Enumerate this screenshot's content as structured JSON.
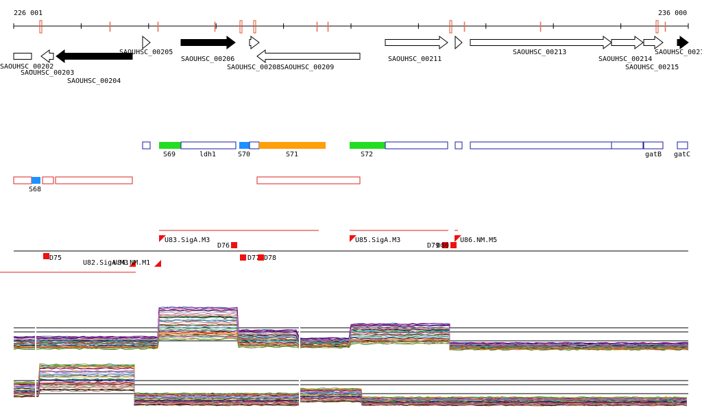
{
  "ruler": {
    "start_label": "226 001",
    "end_label": "236 000"
  },
  "genes": [
    {
      "label": "SAOUHSC_00202",
      "strand": "+",
      "fill": "white"
    },
    {
      "label": "SAOUHSC_00203",
      "strand": "-",
      "fill": "white"
    },
    {
      "label": "SAOUHSC_00204",
      "strand": "-",
      "fill": "black"
    },
    {
      "label": "SAOUHSC_00205",
      "strand": "+",
      "fill": "white"
    },
    {
      "label": "SAOUHSC_00206",
      "strand": "+",
      "fill": "black"
    },
    {
      "label": "SAOUHSC_00208",
      "strand": "+",
      "fill": "white"
    },
    {
      "label": "SAOUHSC_00209",
      "strand": "-",
      "fill": "white"
    },
    {
      "label": "SAOUHSC_00211",
      "strand": "+",
      "fill": "white"
    },
    {
      "label": "",
      "strand": "+",
      "fill": "white"
    },
    {
      "label": "SAOUHSC_00213",
      "strand": "+",
      "fill": "white"
    },
    {
      "label": "SAOUHSC_00214",
      "strand": "+",
      "fill": "white"
    },
    {
      "label": "SAOUHSC_00215",
      "strand": "+",
      "fill": "white"
    },
    {
      "label": "SAOUHSC_0021",
      "strand": "+",
      "fill": "black"
    }
  ],
  "annotation_track": [
    {
      "label": "",
      "color": "#1a1aa6",
      "style": "outline"
    },
    {
      "label": "S69",
      "color": "#22dd22",
      "style": "filled"
    },
    {
      "label": "ldh1",
      "color": "#1a1aa6",
      "style": "outline"
    },
    {
      "label": "S70",
      "color": "#1e90ff",
      "style": "filled"
    },
    {
      "label": "",
      "color": "#1a1aa6",
      "style": "outline"
    },
    {
      "label": "S71",
      "color": "#ff9f0a",
      "style": "filled"
    },
    {
      "label": "S72",
      "color": "#22dd22",
      "style": "filled"
    },
    {
      "label": "",
      "color": "#1a1aa6",
      "style": "outline"
    },
    {
      "label": "",
      "color": "#1a1aa6",
      "style": "outline"
    },
    {
      "label": "",
      "color": "#1a1aa6",
      "style": "outline"
    },
    {
      "label": "",
      "color": "#1a1aa6",
      "style": "outline"
    },
    {
      "label": "gatB",
      "color": "#1a1aa6",
      "style": "outline"
    },
    {
      "label": "gatC",
      "color": "#1a1aa6",
      "style": "outline"
    }
  ],
  "antisense_track": [
    {
      "label": "",
      "color": "#dd2222",
      "style": "outline"
    },
    {
      "label": "S68",
      "color": "#1e90ff",
      "style": "filled"
    },
    {
      "label": "",
      "color": "#dd2222",
      "style": "outline"
    },
    {
      "label": "",
      "color": "#dd2222",
      "style": "outline"
    },
    {
      "label": "",
      "color": "#dd2222",
      "style": "outline"
    }
  ],
  "promoters": [
    {
      "label": "U83.SigA.M3",
      "strand": "+"
    },
    {
      "label": "U85.SigA.M3",
      "strand": "+"
    },
    {
      "label": "U86.NM.M5",
      "strand": "+"
    },
    {
      "label": "U82.SigA.M3",
      "strand": "-"
    },
    {
      "label": "U84.NM.M1",
      "strand": "-"
    }
  ],
  "terminators": [
    {
      "label": "D75",
      "strand": "-"
    },
    {
      "label": "D76",
      "strand": "+"
    },
    {
      "label": "D77",
      "strand": "-"
    },
    {
      "label": "D78",
      "strand": "-"
    },
    {
      "label": "D79",
      "strand": "+"
    },
    {
      "label": "D80",
      "strand": "+"
    }
  ],
  "expression_palette": [
    "#d62728",
    "#2ca02c",
    "#1f77b4",
    "#ff7f0e",
    "#9467bd",
    "#8c564b",
    "#e377c2",
    "#7f7f7f",
    "#bcbd22",
    "#17becf",
    "#8b0000",
    "#006400",
    "#00008b",
    "#b8860b",
    "#800080",
    "#000000"
  ]
}
